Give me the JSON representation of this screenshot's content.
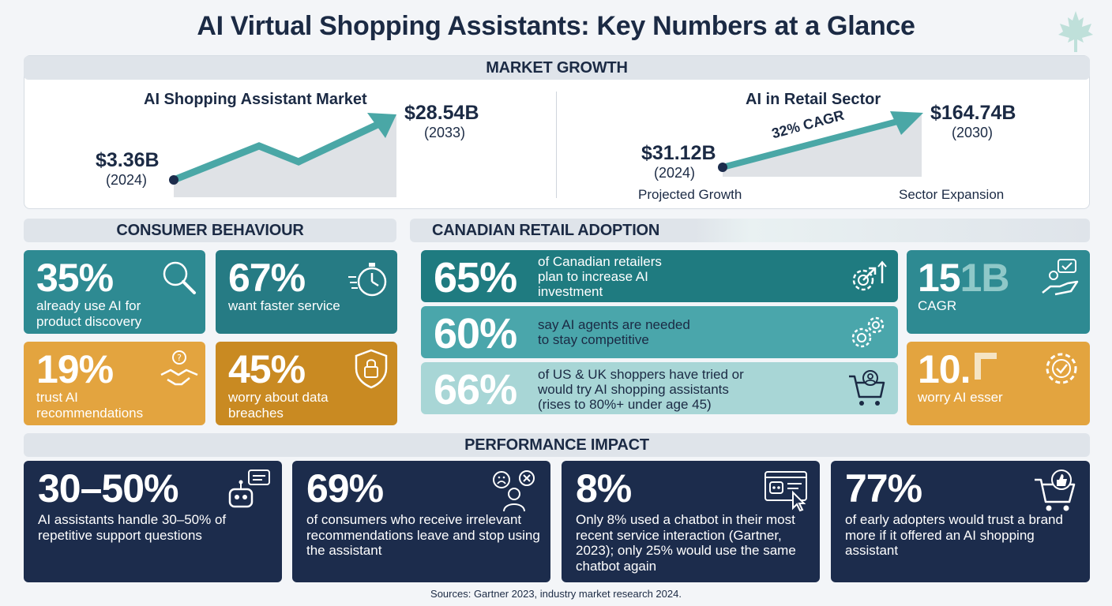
{
  "title": "AI Virtual Shopping Assistants: Key Numbers at a Glance",
  "colors": {
    "navy": "#1c2c4c",
    "teal": "#2e8a92",
    "orange": "#e3a43f",
    "light_teal": "#6fbcc0",
    "header_gray": "#dfe4ea"
  },
  "market_growth": {
    "header": "MARKET GROWTH",
    "left": {
      "title": "AI Shopping Assistant Market",
      "start_value": "$3.36B",
      "start_year": "(2024)",
      "end_value": "$28.54B",
      "end_year": "(2033)"
    },
    "right": {
      "title": "AI in Retail Sector",
      "start_value": "$31.12B",
      "start_year": "(2024)",
      "end_value": "$164.74B",
      "end_year": "(2030)",
      "cagr_label": "32% CAGR",
      "bottom_left": "Projected Growth",
      "bottom_right": "Sector Expansion"
    }
  },
  "consumer_behaviour": {
    "header": "CONSUMER BEHAVIOUR",
    "tiles": [
      {
        "pct": "35%",
        "desc_1": "already use AI for",
        "desc_2": "product discovery",
        "icon": "magnifier-icon"
      },
      {
        "pct": "67%",
        "desc_1": "want faster service",
        "desc_2": "",
        "icon": "stopwatch-icon"
      },
      {
        "pct": "19%",
        "desc_1": "trust AI",
        "desc_2": "recommendations",
        "icon": "handshake-icon"
      },
      {
        "pct": "45%",
        "desc_1": "worry about data",
        "desc_2": "breaches",
        "icon": "shield-lock-icon"
      }
    ]
  },
  "canadian_adoption": {
    "header": "CANADIAN RETAIL ADOPTION",
    "rows": [
      {
        "pct": "65%",
        "line_1": "of Canadian retailers",
        "line_2": "plan to increase AI",
        "line_3": "investment",
        "icon": "gear-growth-icon"
      },
      {
        "pct": "60%",
        "line_1": "say AI agents are needed",
        "line_2": "to stay competitive",
        "line_3": "",
        "icon": "gears-icon"
      },
      {
        "pct": "66%",
        "line_1": "of US & UK shoppers have tried or",
        "line_2": "would try AI shopping assistants",
        "line_3": "(rises to 80%+ under age 45)",
        "icon": "cart-person-icon"
      }
    ],
    "side_tiles": [
      {
        "pct_main": "15",
        "pct_ghost": "1B",
        "desc": "CAGR",
        "icon": "hand-chat-icon"
      },
      {
        "pct_main": "10.",
        "pct_ghost": "",
        "desc": "worry AI esser",
        "icon": "gear-check-icon"
      }
    ]
  },
  "performance_impact": {
    "header": "PERFORMANCE IMPACT",
    "cards": [
      {
        "pct": "30–50%",
        "desc": "AI assistants handle 30–50% of repetitive support questions",
        "icon": "robot-chat-icon"
      },
      {
        "pct": "69%",
        "desc": "of consumers who receive irrelevant recommendations leave and stop using the assistant",
        "icon": "frustrated-user-icon"
      },
      {
        "pct": "8%",
        "desc": "Only 8% used a chatbot in their most recent service interaction (Gartner, 2023); only 25% would use the same chatbot again",
        "icon": "chatbot-screen-icon"
      },
      {
        "pct": "77%",
        "desc": "of early adopters would trust a brand more if it offered an AI shopping assistant",
        "icon": "cart-thumbs-up-icon"
      }
    ]
  },
  "sources": "Sources: Gartner 2023, industry market research 2024."
}
